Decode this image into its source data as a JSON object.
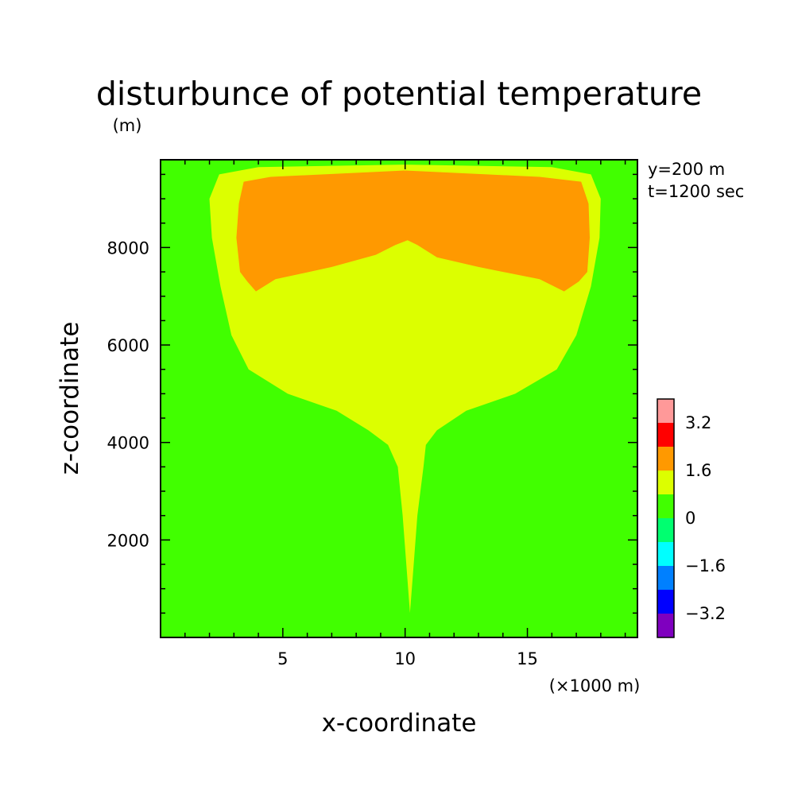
{
  "chart_data": {
    "type": "heatmap",
    "title": "disturbunce of potential temperature",
    "xlabel": "x-coordinate",
    "ylabel": "z-coordinate",
    "x_unit": "(×1000 m)",
    "y_unit": "(m)",
    "annotations": [
      "y=200 m",
      "t=1200 sec"
    ],
    "xlim": [
      0,
      19.5
    ],
    "ylim": [
      0,
      9800
    ],
    "x_ticks": [
      5,
      10,
      15
    ],
    "y_ticks": [
      2000,
      4000,
      6000,
      8000
    ],
    "x_minor_step": 1,
    "y_minor_step": 500,
    "background_color": "#41ff00",
    "levels": [
      {
        "min": -4.0,
        "max": -3.2,
        "color": "#7f00bf"
      },
      {
        "min": -3.2,
        "max": -2.4,
        "color": "#0000ff"
      },
      {
        "min": -2.4,
        "max": -1.6,
        "color": "#0080ff"
      },
      {
        "min": -1.6,
        "max": -0.8,
        "color": "#00ffff"
      },
      {
        "min": -0.8,
        "max": 0.0,
        "color": "#00ff70"
      },
      {
        "min": 0.0,
        "max": 0.8,
        "color": "#41ff00"
      },
      {
        "min": 0.8,
        "max": 1.6,
        "color": "#dcff00"
      },
      {
        "min": 1.6,
        "max": 2.4,
        "color": "#ff9900"
      },
      {
        "min": 2.4,
        "max": 3.2,
        "color": "#ff0000"
      },
      {
        "min": 3.2,
        "max": 4.0,
        "color": "#ff9999"
      }
    ],
    "colorbar_labels": [
      "3.2",
      "1.6",
      "0",
      "-1.6",
      "-3.2"
    ],
    "regions": [
      {
        "level": "0.8 to 1.6",
        "color": "#dcff00",
        "outline": [
          [
            10.2,
            500
          ],
          [
            10.35,
            1500
          ],
          [
            10.5,
            2500
          ],
          [
            10.75,
            3500
          ],
          [
            10.85,
            3950
          ],
          [
            11.3,
            4250
          ],
          [
            12.5,
            4650
          ],
          [
            14.5,
            5000
          ],
          [
            16.2,
            5500
          ],
          [
            17.0,
            6200
          ],
          [
            17.6,
            7200
          ],
          [
            17.95,
            8200
          ],
          [
            18.0,
            9000
          ],
          [
            17.6,
            9500
          ],
          [
            16.0,
            9650
          ],
          [
            10.0,
            9700
          ],
          [
            4.0,
            9650
          ],
          [
            2.4,
            9500
          ],
          [
            2.0,
            9000
          ],
          [
            2.1,
            8200
          ],
          [
            2.45,
            7200
          ],
          [
            2.9,
            6200
          ],
          [
            3.6,
            5500
          ],
          [
            5.2,
            5000
          ],
          [
            7.2,
            4650
          ],
          [
            8.5,
            4250
          ],
          [
            9.3,
            3950
          ],
          [
            9.7,
            3500
          ],
          [
            9.9,
            2500
          ],
          [
            10.05,
            1500
          ]
        ]
      },
      {
        "level": "1.6 to 2.4",
        "color": "#ff9900",
        "outline": [
          [
            3.2,
            8900
          ],
          [
            3.1,
            8200
          ],
          [
            3.25,
            7500
          ],
          [
            3.55,
            7300
          ],
          [
            3.9,
            7100
          ],
          [
            4.7,
            7350
          ],
          [
            7.0,
            7600
          ],
          [
            8.8,
            7850
          ],
          [
            9.6,
            8050
          ],
          [
            10.1,
            8150
          ],
          [
            10.5,
            8050
          ],
          [
            11.3,
            7800
          ],
          [
            13.0,
            7600
          ],
          [
            15.5,
            7350
          ],
          [
            16.5,
            7100
          ],
          [
            17.1,
            7300
          ],
          [
            17.45,
            7500
          ],
          [
            17.55,
            8200
          ],
          [
            17.5,
            8900
          ],
          [
            17.2,
            9350
          ],
          [
            15.5,
            9450
          ],
          [
            10.0,
            9580
          ],
          [
            4.5,
            9450
          ],
          [
            3.4,
            9350
          ]
        ]
      }
    ]
  }
}
